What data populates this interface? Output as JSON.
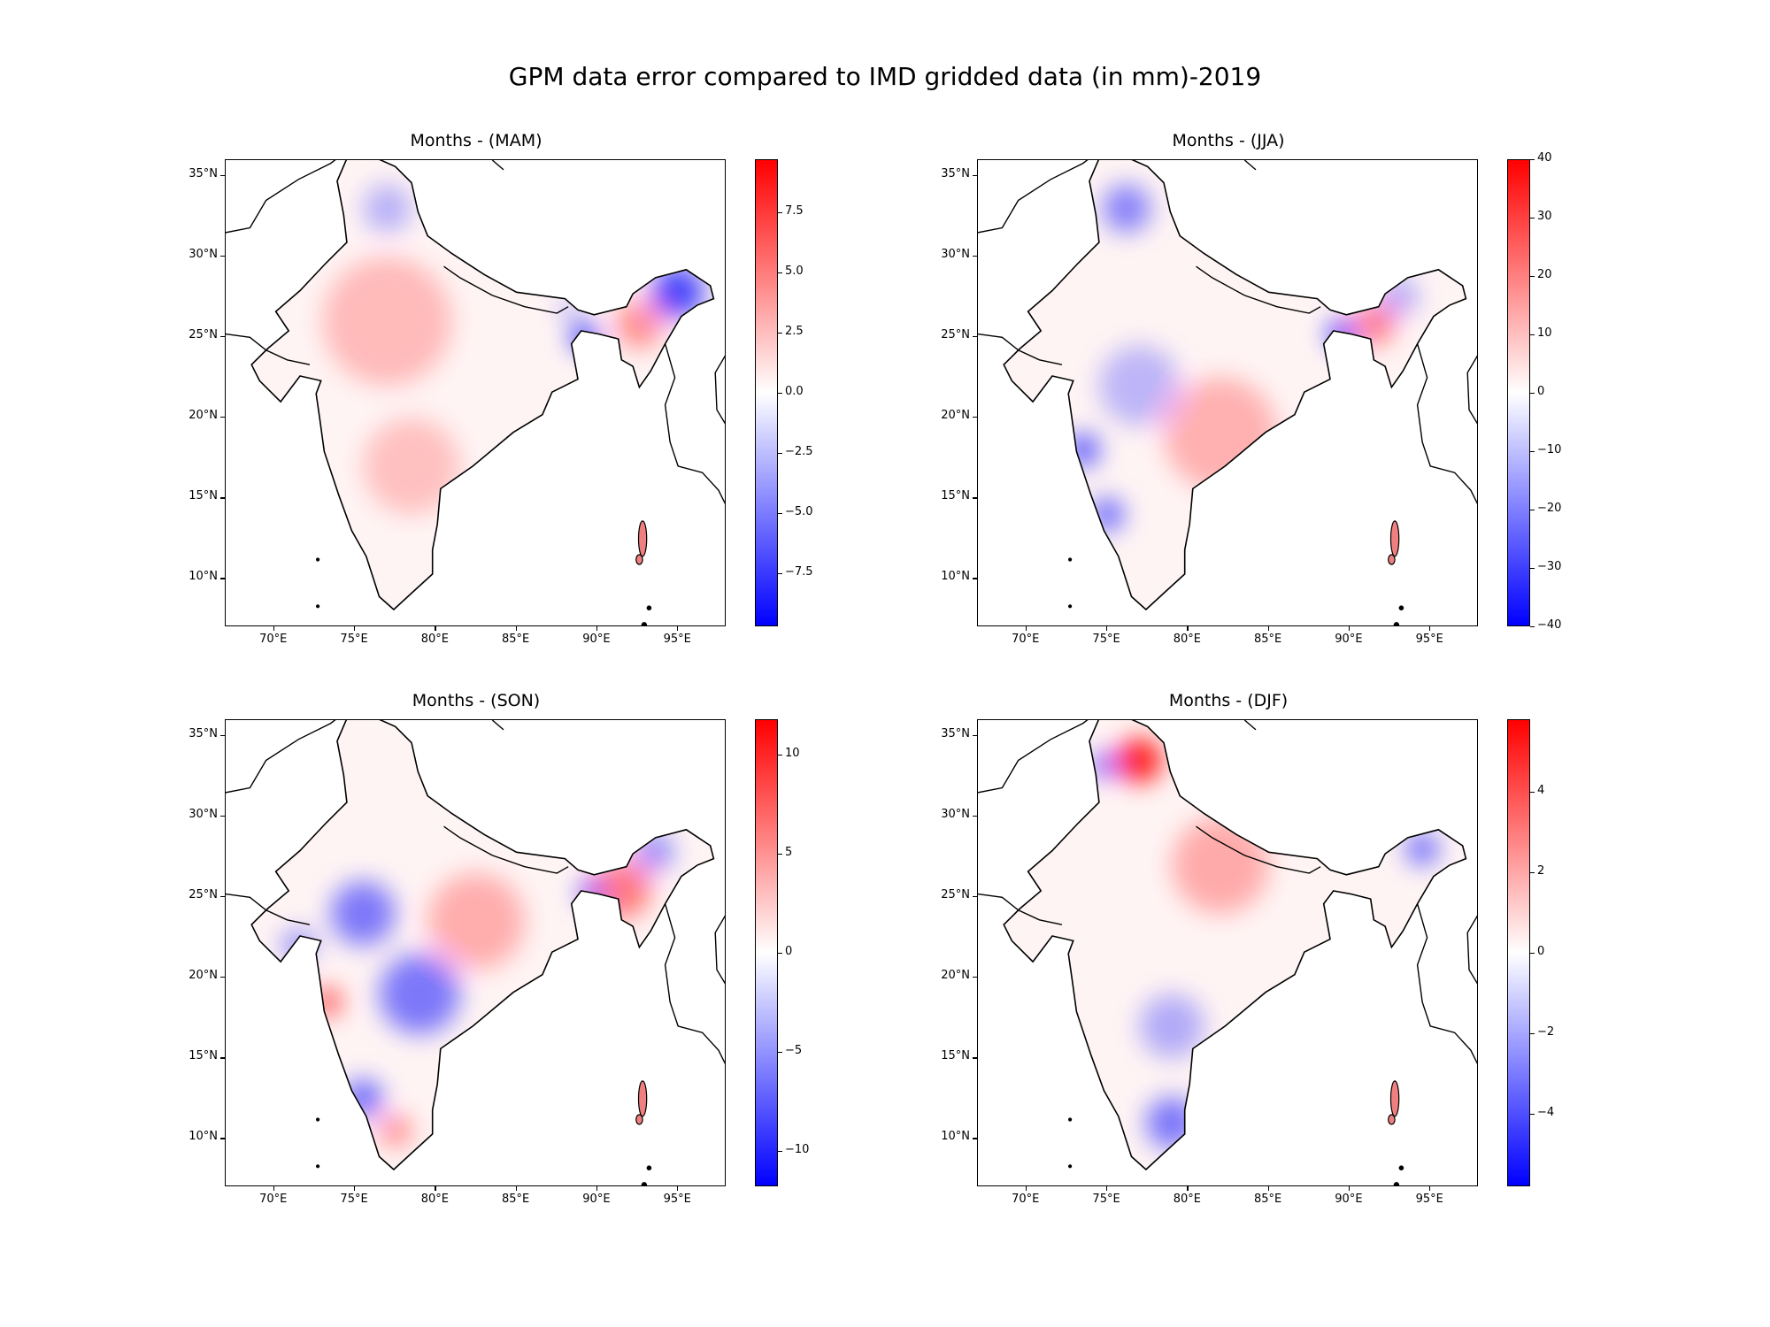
{
  "figure": {
    "title": "GPM data error compared to IMD gridded data (in mm)-2019",
    "lat_ticks": [
      "35°N",
      "30°N",
      "25°N",
      "20°N",
      "15°N",
      "10°N"
    ],
    "lat_values": [
      35,
      30,
      25,
      20,
      15,
      10
    ],
    "lon_ticks": [
      "70°E",
      "75°E",
      "80°E",
      "85°E",
      "90°E",
      "95°E"
    ],
    "lon_values": [
      70,
      75,
      80,
      85,
      90,
      95
    ],
    "extent": {
      "lon": [
        67,
        98
      ],
      "lat": [
        7,
        36
      ]
    },
    "colormap": {
      "low": "#0000ff",
      "mid": "#ffffff",
      "high": "#ff0000"
    }
  },
  "panels": [
    {
      "id": "mam",
      "title": "Months - (MAM)",
      "colorbar": {
        "range": [
          -9.7,
          9.7
        ],
        "ticks": [
          7.5,
          5.0,
          2.5,
          0.0,
          -2.5,
          -5.0,
          -7.5
        ],
        "labels": [
          "7.5",
          "5.0",
          "2.5",
          "0.0",
          "−2.5",
          "−5.0",
          "−7.5"
        ]
      },
      "blobs": [
        {
          "lon": 95.0,
          "lat": 27.8,
          "v": -6.5,
          "r": 1.6
        },
        {
          "lon": 89.2,
          "lat": 25.0,
          "v": -8.5,
          "r": 0.8
        },
        {
          "lon": 92.6,
          "lat": 25.8,
          "v": 3.0,
          "r": 1.5
        },
        {
          "lon": 88.3,
          "lat": 26.8,
          "v": -4.0,
          "r": 0.5
        },
        {
          "lon": 77.0,
          "lat": 26.0,
          "v": 1.0,
          "r": 4.0
        },
        {
          "lon": 77.0,
          "lat": 33.0,
          "v": -1.5,
          "r": 1.5
        },
        {
          "lon": 78.5,
          "lat": 17.0,
          "v": 0.7,
          "r": 3.0
        }
      ]
    },
    {
      "id": "jja",
      "title": "Months - (JJA)",
      "colorbar": {
        "range": [
          -40,
          40
        ],
        "ticks": [
          40,
          30,
          20,
          10,
          0,
          -10,
          -20,
          -30,
          -40
        ],
        "labels": [
          "40",
          "30",
          "20",
          "10",
          "0",
          "−10",
          "−20",
          "−30",
          "−40"
        ]
      },
      "blobs": [
        {
          "lon": 73.5,
          "lat": 18.0,
          "v": -25,
          "r": 1.0
        },
        {
          "lon": 75.0,
          "lat": 14.0,
          "v": -22,
          "r": 1.0
        },
        {
          "lon": 76.2,
          "lat": 33.0,
          "v": -15,
          "r": 1.5
        },
        {
          "lon": 89.5,
          "lat": 25.2,
          "v": -35,
          "r": 0.8
        },
        {
          "lon": 91.5,
          "lat": 25.8,
          "v": 16,
          "r": 1.3
        },
        {
          "lon": 93.0,
          "lat": 27.5,
          "v": -8,
          "r": 1.2
        },
        {
          "lon": 82.0,
          "lat": 19.0,
          "v": 6,
          "r": 3.5
        },
        {
          "lon": 77.0,
          "lat": 22.0,
          "v": -5,
          "r": 2.5
        }
      ]
    },
    {
      "id": "son",
      "title": "Months - (SON)",
      "colorbar": {
        "range": [
          -11.8,
          11.8
        ],
        "ticks": [
          10,
          5,
          0,
          -5,
          -10
        ],
        "labels": [
          "10",
          "5",
          "0",
          "−5",
          "−10"
        ]
      },
      "blobs": [
        {
          "lon": 75.5,
          "lat": 24.0,
          "v": -5,
          "r": 2.0
        },
        {
          "lon": 79.0,
          "lat": 19.0,
          "v": -5,
          "r": 2.5
        },
        {
          "lon": 73.3,
          "lat": 18.5,
          "v": 7,
          "r": 0.9
        },
        {
          "lon": 75.5,
          "lat": 12.5,
          "v": -6,
          "r": 1.2
        },
        {
          "lon": 77.5,
          "lat": 10.5,
          "v": 4,
          "r": 1.0
        },
        {
          "lon": 91.5,
          "lat": 25.5,
          "v": 5,
          "r": 1.8
        },
        {
          "lon": 89.6,
          "lat": 25.3,
          "v": -9,
          "r": 0.7
        },
        {
          "lon": 93.5,
          "lat": 27.8,
          "v": -4,
          "r": 1.2
        },
        {
          "lon": 82.5,
          "lat": 23.5,
          "v": 2,
          "r": 3.0
        },
        {
          "lon": 71.5,
          "lat": 22.0,
          "v": -4,
          "r": 1.0
        }
      ]
    },
    {
      "id": "djf",
      "title": "Months - (DJF)",
      "colorbar": {
        "range": [
          -5.8,
          5.8
        ],
        "ticks": [
          4,
          2,
          0,
          -2,
          -4
        ],
        "labels": [
          "4",
          "2",
          "0",
          "−2",
          "−4"
        ]
      },
      "blobs": [
        {
          "lon": 77.0,
          "lat": 33.5,
          "v": 5.0,
          "r": 1.4
        },
        {
          "lon": 74.8,
          "lat": 33.2,
          "v": -3.5,
          "r": 0.8
        },
        {
          "lon": 79.0,
          "lat": 11.0,
          "v": -2.5,
          "r": 1.6
        },
        {
          "lon": 94.5,
          "lat": 28.0,
          "v": -3.0,
          "r": 1.0
        },
        {
          "lon": 82.0,
          "lat": 27.0,
          "v": 1.0,
          "r": 3.0
        },
        {
          "lon": 79.0,
          "lat": 17.0,
          "v": -1.0,
          "r": 2.0
        }
      ]
    }
  ]
}
